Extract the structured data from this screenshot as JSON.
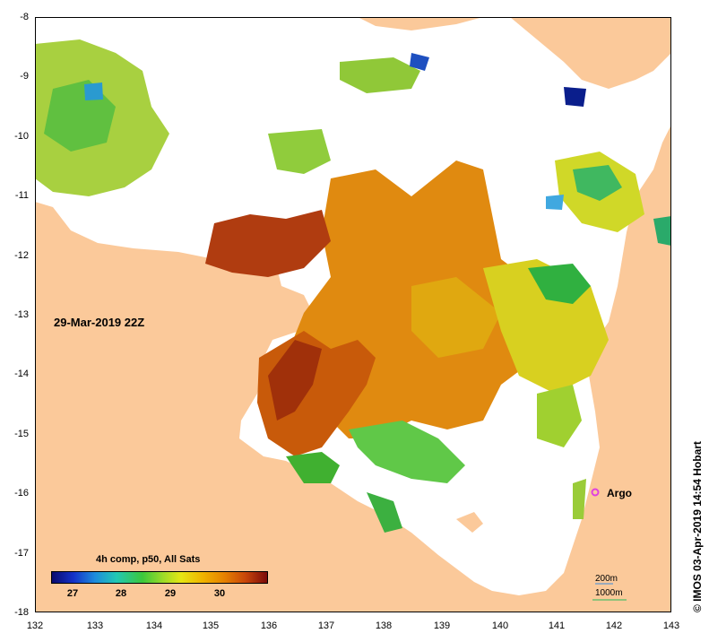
{
  "y_ticks": [
    "-8",
    "-9",
    "-10",
    "-11",
    "-12",
    "-13",
    "-14",
    "-15",
    "-16",
    "-17",
    "-18"
  ],
  "x_ticks": [
    "132",
    "133",
    "134",
    "135",
    "136",
    "137",
    "138",
    "139",
    "140",
    "141",
    "142",
    "143"
  ],
  "date_label": "29-Mar-2019 22Z",
  "colorbar": {
    "title": "4h comp, p50, All Sats",
    "labels": [
      "27",
      "28",
      "29",
      "30"
    ]
  },
  "argo_label": "Argo",
  "depth_labels": [
    "200m",
    "1000m"
  ],
  "credit": "© IMOS 03-Apr-2019 14:54 Hobart",
  "colors": {
    "land": "#fbc99a",
    "argo": "#e040e0",
    "depth_200": "#7aa0c8",
    "depth_1000": "#6cc070"
  }
}
